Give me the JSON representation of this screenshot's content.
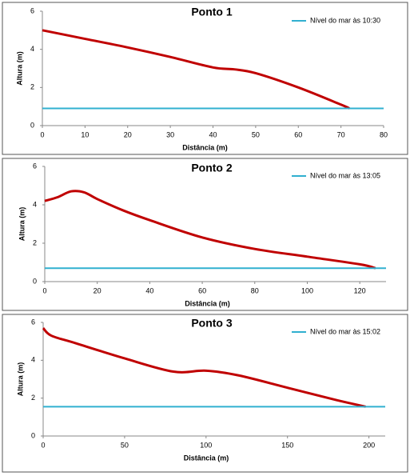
{
  "chart_data": [
    {
      "type": "line",
      "title": "Ponto 1",
      "x_label": "Distância (m)",
      "y_label": "Altura (m)",
      "xlim": [
        0,
        80
      ],
      "xticks": [
        0,
        10,
        20,
        30,
        40,
        50,
        60,
        70,
        80
      ],
      "ylim": [
        0,
        6
      ],
      "yticks": [
        0,
        2,
        4,
        6
      ],
      "legend": "upper right",
      "series": [
        {
          "color": "#c00000",
          "x": [
            0,
            10,
            20,
            30,
            40,
            45,
            50,
            60,
            70,
            72
          ],
          "values": [
            5.0,
            4.55,
            4.1,
            3.6,
            3.05,
            2.95,
            2.75,
            2.0,
            1.1,
            0.9
          ]
        },
        {
          "name": "Nível do mar às 10:30",
          "color": "#31b0d0",
          "x": [
            0,
            80
          ],
          "values": [
            0.9,
            0.9
          ]
        }
      ]
    },
    {
      "type": "line",
      "title": "Ponto 2",
      "x_label": "Distância (m)",
      "y_label": "Altura (m)",
      "xlim": [
        0,
        130
      ],
      "xticks": [
        0,
        20,
        40,
        60,
        80,
        100,
        120
      ],
      "ylim": [
        0,
        6
      ],
      "yticks": [
        0,
        2,
        4,
        6
      ],
      "legend": "upper right",
      "series": [
        {
          "color": "#c00000",
          "x": [
            0,
            5,
            10,
            15,
            20,
            30,
            40,
            60,
            80,
            100,
            120,
            126
          ],
          "values": [
            4.2,
            4.4,
            4.7,
            4.65,
            4.3,
            3.7,
            3.2,
            2.3,
            1.7,
            1.3,
            0.9,
            0.7
          ]
        },
        {
          "name": "Nível do mar às 13:05",
          "color": "#31b0d0",
          "x": [
            0,
            130
          ],
          "values": [
            0.7,
            0.7
          ]
        }
      ]
    },
    {
      "type": "line",
      "title": "Ponto 3",
      "x_label": "Distância (m)",
      "y_label": "Altura (m)",
      "xlim": [
        0,
        210
      ],
      "xticks": [
        0,
        50,
        100,
        150,
        200
      ],
      "ylim": [
        0,
        6
      ],
      "yticks": [
        0,
        2,
        4,
        6
      ],
      "legend": "upper right",
      "series": [
        {
          "color": "#c00000",
          "x": [
            0,
            5,
            20,
            50,
            80,
            100,
            120,
            150,
            180,
            198
          ],
          "values": [
            5.7,
            5.3,
            4.9,
            4.1,
            3.4,
            3.45,
            3.2,
            2.55,
            1.9,
            1.55
          ]
        },
        {
          "name": "Nível do mar às 15:02",
          "color": "#31b0d0",
          "x": [
            0,
            210
          ],
          "values": [
            1.55,
            1.55
          ]
        }
      ]
    }
  ]
}
